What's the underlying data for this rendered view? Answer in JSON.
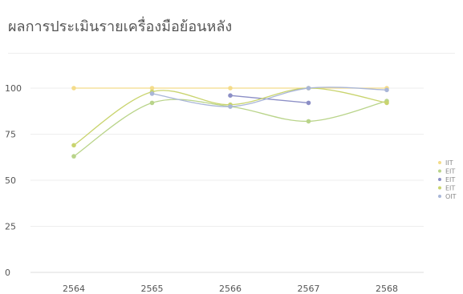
{
  "title": "ผลการประเมินรายเครื่องมือย้อนหลัง",
  "chart_data": {
    "type": "line",
    "x": [
      "2564",
      "2565",
      "2566",
      "2567",
      "2568"
    ],
    "ylim": [
      0,
      100
    ],
    "yticks": [
      0,
      25,
      50,
      75,
      100
    ],
    "grid": true,
    "smooth": true,
    "legend_position": "right",
    "series": [
      {
        "name": "IIT",
        "color": "#f4dc8a",
        "values": [
          100,
          100,
          100,
          100,
          100
        ]
      },
      {
        "name": "EIT",
        "color": "#b9d48a",
        "values": [
          63,
          92,
          90,
          82,
          93
        ]
      },
      {
        "name": "EIT",
        "color": "#8c8fc6",
        "values": [
          null,
          null,
          96,
          92,
          null
        ]
      },
      {
        "name": "EIT",
        "color": "#c9d46e",
        "values": [
          69,
          98,
          91,
          100,
          92
        ]
      },
      {
        "name": "OIT",
        "color": "#a9b6d8",
        "values": [
          null,
          97,
          90,
          100,
          99
        ]
      }
    ]
  }
}
